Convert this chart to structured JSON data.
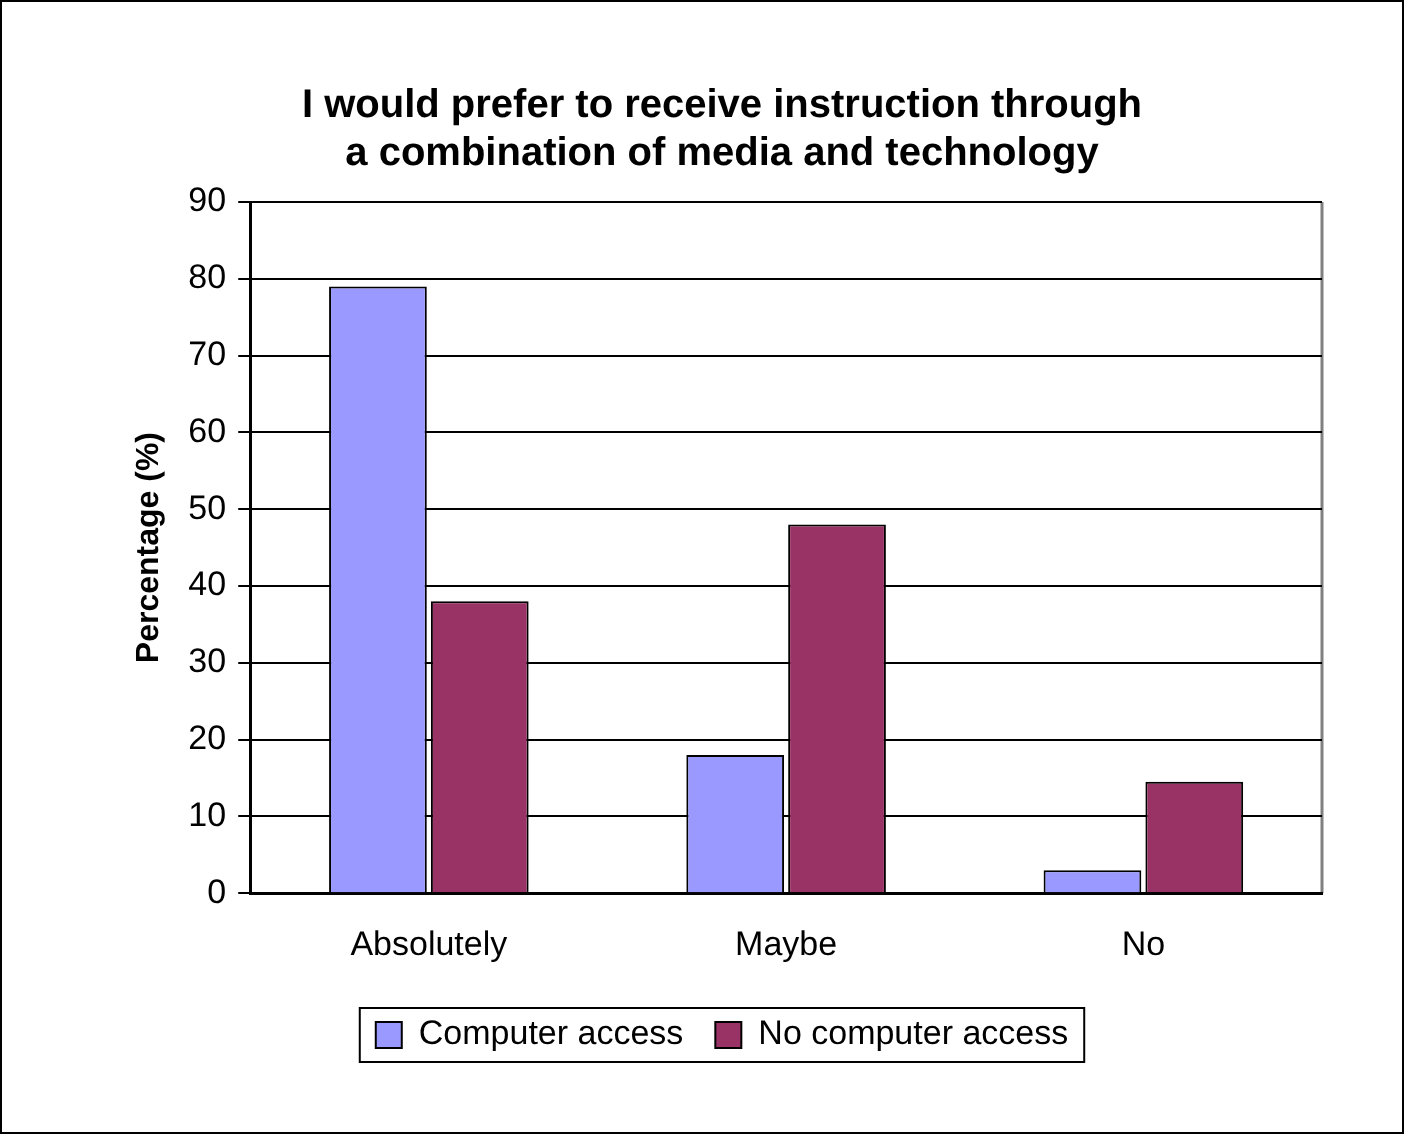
{
  "chart_data": {
    "type": "bar",
    "title": "I would prefer to receive instruction through a combination of media and technology",
    "ylabel": "Percentage (%)",
    "categories": [
      "Absolutely",
      "Maybe",
      "No"
    ],
    "series": [
      {
        "name": "Computer access",
        "color": "#9999ff",
        "values": [
          79,
          18,
          3
        ]
      },
      {
        "name": "No computer access",
        "color": "#993366",
        "values": [
          38,
          48,
          14.5
        ]
      }
    ],
    "ylim": [
      0,
      90
    ],
    "yticks": [
      0,
      10,
      20,
      30,
      40,
      50,
      60,
      70,
      80,
      90
    ],
    "grid": "y",
    "legend": "bottom"
  }
}
